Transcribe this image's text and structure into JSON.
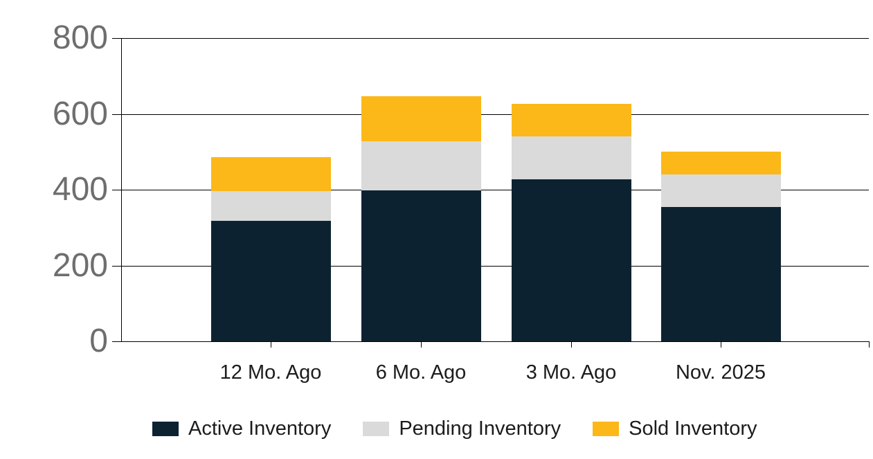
{
  "colors": {
    "active": "#0d2231",
    "pending": "#dadada",
    "sold": "#fbb818",
    "grid": "#000000",
    "y_label_text": "#6e6e6e",
    "x_label_text": "#1c1c1c",
    "background": "#ffffff"
  },
  "chart_data": {
    "type": "bar",
    "stacked": true,
    "title": "",
    "xlabel": "",
    "ylabel": "",
    "categories": [
      "12 Mo. Ago",
      "6 Mo. Ago",
      "3 Mo. Ago",
      "Nov. 2025"
    ],
    "series": [
      {
        "name": "Active Inventory",
        "color_key": "active",
        "values": [
          317,
          399,
          427,
          354
        ]
      },
      {
        "name": "Pending Inventory",
        "color_key": "pending",
        "values": [
          79,
          129,
          113,
          86
        ]
      },
      {
        "name": "Sold Inventory",
        "color_key": "sold",
        "values": [
          90,
          118,
          87,
          60
        ]
      }
    ],
    "totals": [
      486,
      646,
      627,
      500
    ],
    "ylim": [
      0,
      800
    ],
    "yticks": [
      "0",
      "200",
      "400",
      "600",
      "800"
    ],
    "grid": true,
    "legend_position": "bottom"
  }
}
